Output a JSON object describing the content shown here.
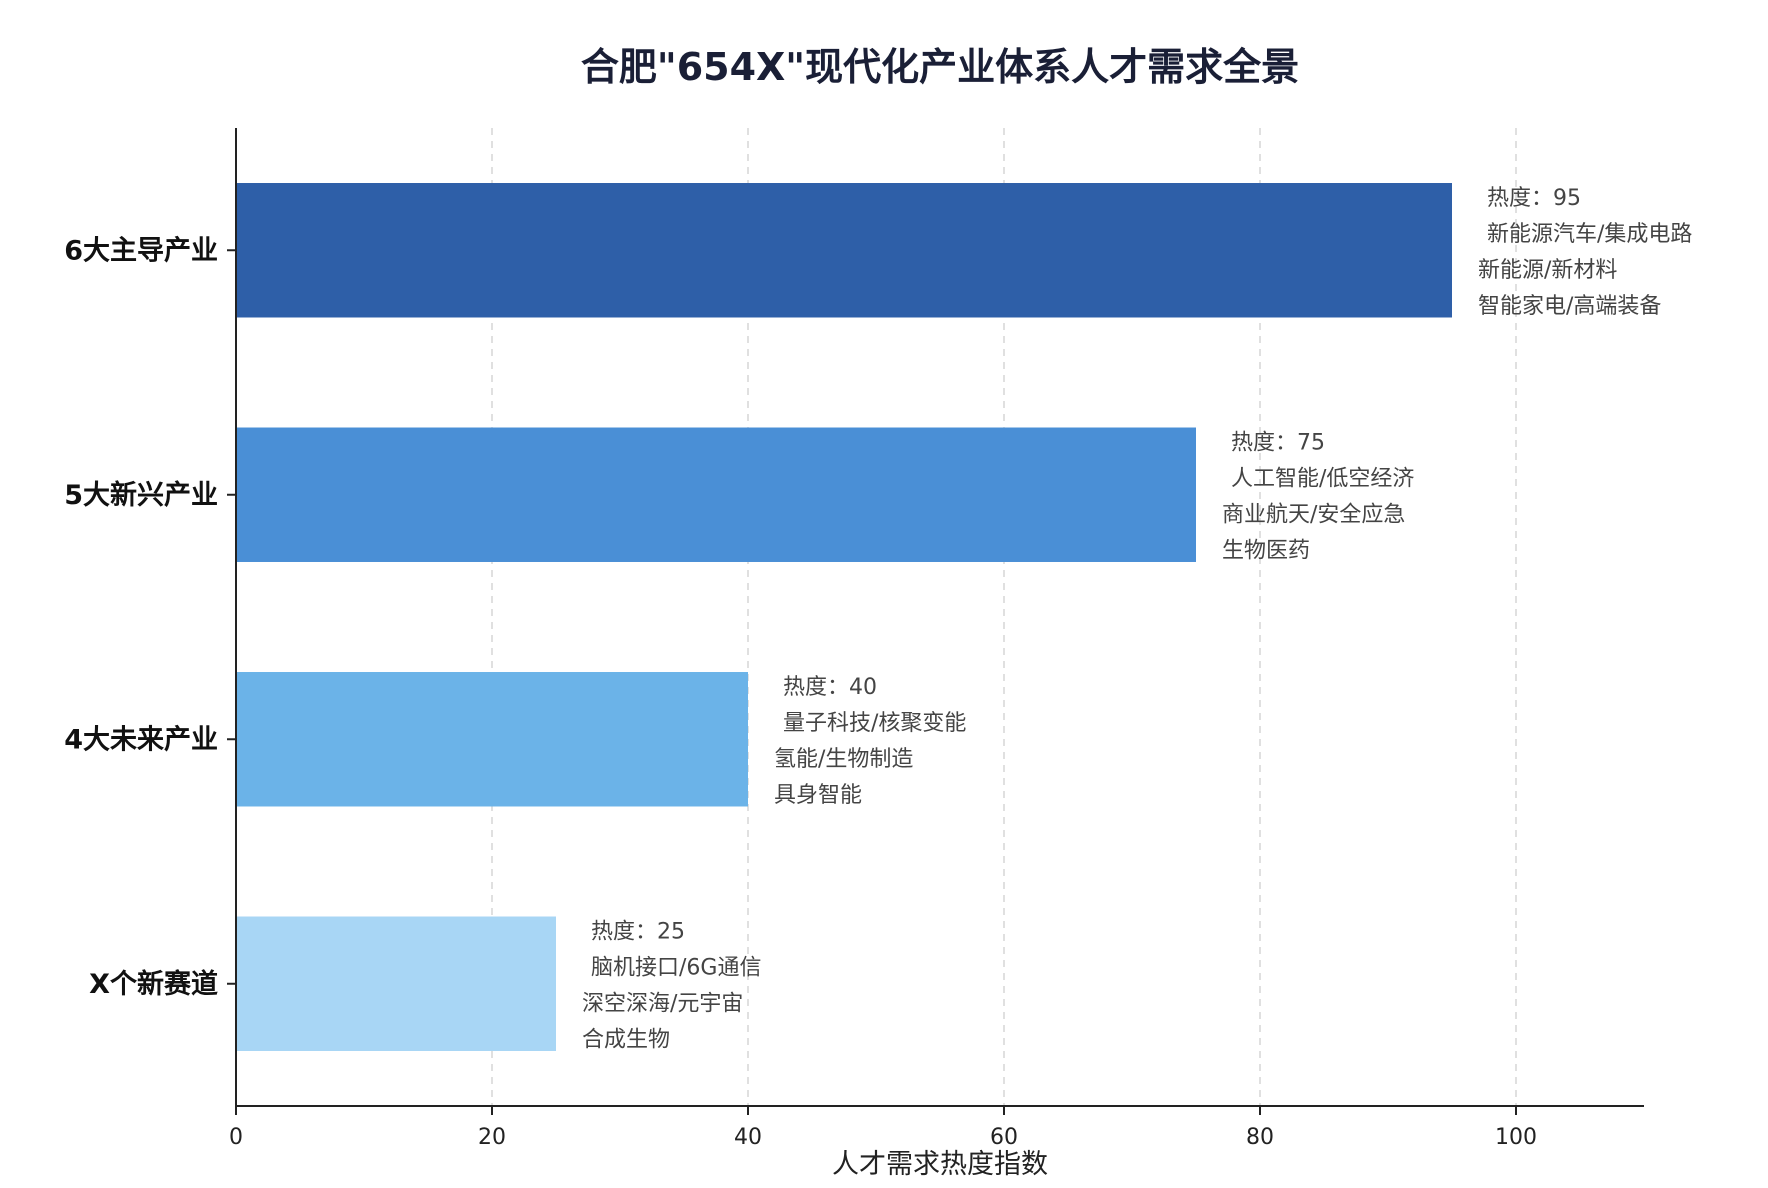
{
  "chart_data": {
    "type": "bar",
    "orientation": "horizontal",
    "title": "合肥\"654X\"现代化产业体系人才需求全景",
    "xlabel": "人才需求热度指数",
    "ylabel": "",
    "xlim": [
      0,
      110
    ],
    "xticks": [
      0,
      20,
      40,
      60,
      80,
      100
    ],
    "grid": "vertical dashed",
    "categories": [
      "6大主导产业",
      "5大新兴产业",
      "4大未来产业",
      "X个新赛道"
    ],
    "values": [
      95,
      75,
      40,
      25
    ],
    "colors": [
      "#2e5fa8",
      "#4a8fd6",
      "#6bb3e8",
      "#a8d6f5"
    ],
    "annotations": [
      [
        "热度：95",
        "新能源汽车/集成电路",
        "新能源/新材料",
        "智能家电/高端装备"
      ],
      [
        "热度：75",
        "人工智能/低空经济",
        "商业航天/安全应急",
        "生物医药"
      ],
      [
        "热度：40",
        "量子科技/核聚变能",
        "氢能/生物制造",
        "具身智能"
      ],
      [
        "热度：25",
        "脑机接口/6G通信",
        "深空深海/元宇宙",
        "合成生物"
      ]
    ]
  }
}
